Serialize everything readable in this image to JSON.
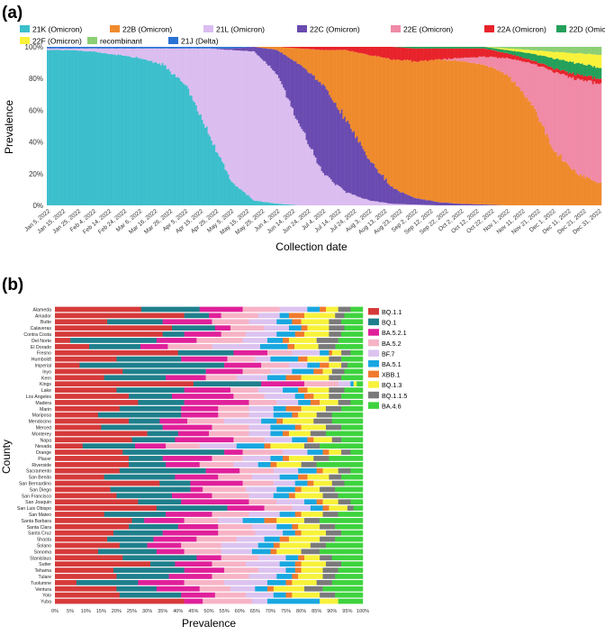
{
  "panels": {
    "a": {
      "label": "(a)"
    },
    "b": {
      "label": "(b)"
    }
  },
  "chart_data": [
    {
      "type": "bar",
      "stacked": true,
      "panel": "(a)",
      "title": "",
      "xlabel": "Collection date",
      "ylabel": "Prevalence",
      "ylim": [
        0,
        100
      ],
      "y_ticks": [
        "0%",
        "20%",
        "40%",
        "60%",
        "80%",
        "100%"
      ],
      "x_tick_labels": [
        "Jan 5, 2022",
        "Jan 15, 2022",
        "Jan 25, 2022",
        "Feb 4, 2022",
        "Feb 14, 2022",
        "Feb 24, 2022",
        "Mar 6, 2022",
        "Mar 16, 2022",
        "Mar 26, 2022",
        "Apr 5, 2022",
        "Apr 15, 2022",
        "Apr 25, 2022",
        "May 5, 2022",
        "May 15, 2022",
        "May 25, 2022",
        "Jun 4, 2022",
        "Jun 14, 2022",
        "Jun 24, 2022",
        "Jul 4, 2022",
        "Jul 14, 2022",
        "Jul 24, 2022",
        "Aug 3, 2022",
        "Aug 13, 2022",
        "Aug 23, 2022",
        "Sep 2, 2022",
        "Sep 12, 2022",
        "Sep 22, 2022",
        "Oct 2, 2022",
        "Oct 12, 2022",
        "Oct 22, 2022",
        "Nov 1, 2022",
        "Nov 11, 2022",
        "Nov 21, 2022",
        "Dec 1, 2022",
        "Dec 11, 2022",
        "Dec 21, 2022",
        "Dec 31, 2022"
      ],
      "legend": [
        {
          "name": "21K (Omicron)",
          "color": "#3cbfcc"
        },
        {
          "name": "22B (Omicron)",
          "color": "#ef8a2c"
        },
        {
          "name": "21L (Omicron)",
          "color": "#dbbdf0"
        },
        {
          "name": "22C (Omicron)",
          "color": "#6a4bb0"
        },
        {
          "name": "22E (Omicron)",
          "color": "#f08aa6"
        },
        {
          "name": "22A (Omicron)",
          "color": "#e8222b"
        },
        {
          "name": "22D (Omicron)",
          "color": "#23a05a"
        },
        {
          "name": "22F (Omicron)",
          "color": "#f8f23a"
        },
        {
          "name": "recombinant",
          "color": "#8ccf74"
        },
        {
          "name": "21J (Delta)",
          "color": "#2a72d4"
        }
      ],
      "series_days": [
        0,
        15,
        30,
        45,
        60,
        75,
        90,
        105,
        120,
        135,
        150,
        165,
        180,
        195,
        210,
        225,
        240,
        255,
        270,
        285,
        300,
        315,
        330,
        345,
        361
      ],
      "series": [
        {
          "name": "21K (Omicron)",
          "values": [
            98,
            98,
            97,
            95,
            92,
            88,
            75,
            45,
            15,
            3,
            1,
            0,
            0,
            0,
            0,
            0,
            0,
            0,
            0,
            0,
            0,
            0,
            0,
            0,
            0
          ]
        },
        {
          "name": "21L (Omicron)",
          "values": [
            1,
            1,
            2,
            4,
            6,
            10,
            23,
            53,
            83,
            94,
            80,
            48,
            20,
            8,
            3,
            1,
            0.5,
            0,
            0,
            0,
            0,
            0,
            0,
            0,
            0
          ]
        },
        {
          "name": "22C (Omicron)",
          "values": [
            0,
            0,
            0,
            0,
            0,
            0,
            0,
            0,
            1,
            3,
            15,
            38,
            55,
            45,
            25,
            10,
            4,
            2,
            1,
            0.5,
            0,
            0,
            0,
            0,
            0
          ]
        },
        {
          "name": "22B (Omicron)",
          "values": [
            0,
            0,
            0,
            0,
            0,
            0,
            0,
            0,
            0,
            0,
            2,
            10,
            22,
            44,
            65,
            80,
            86,
            89,
            89,
            87,
            82,
            65,
            35,
            20,
            14
          ]
        },
        {
          "name": "22E (Omicron)",
          "values": [
            0,
            0,
            0,
            0,
            0,
            0,
            0,
            0,
            0,
            0,
            0,
            0,
            0,
            0,
            0,
            0,
            0,
            0,
            2,
            5,
            10,
            24,
            48,
            58,
            62
          ]
        },
        {
          "name": "22A (Omicron)",
          "values": [
            0,
            0,
            0,
            0,
            0,
            0,
            0,
            0,
            0,
            0,
            0,
            1,
            2,
            2,
            5,
            8,
            8,
            7,
            6,
            5,
            3,
            2,
            2,
            3,
            3
          ]
        },
        {
          "name": "22D (Omicron)",
          "values": [
            0,
            0,
            0,
            0,
            0,
            0,
            0,
            0,
            0,
            0,
            0,
            0,
            0,
            0,
            0,
            0,
            1,
            1,
            1,
            1,
            2,
            4,
            6,
            7,
            7
          ]
        },
        {
          "name": "22F (Omicron)",
          "values": [
            0,
            0,
            0,
            0,
            0,
            0,
            0,
            0,
            0,
            0,
            0,
            0,
            0,
            0,
            0,
            0,
            0,
            0,
            0,
            0,
            1,
            2,
            4,
            6,
            8
          ]
        },
        {
          "name": "recombinant",
          "values": [
            0,
            0,
            0,
            0,
            0,
            0,
            0,
            0,
            0,
            0,
            0,
            0,
            0,
            0,
            0,
            0,
            0,
            0,
            0,
            0,
            1,
            2,
            3,
            4,
            5
          ]
        },
        {
          "name": "21J (Delta)",
          "values": [
            1,
            1,
            1,
            1,
            1,
            1,
            1,
            1,
            1,
            0,
            0,
            0,
            0,
            0,
            0,
            0,
            0,
            0,
            0,
            0,
            0,
            0,
            0,
            0,
            0
          ]
        }
      ]
    },
    {
      "type": "bar",
      "orientation": "horizontal",
      "stacked": true,
      "panel": "(b)",
      "title": "",
      "xlabel": "Prevalence",
      "ylabel": "County",
      "xlim": [
        0,
        100
      ],
      "x_ticks": [
        "0%",
        "5%",
        "10%",
        "15%",
        "20%",
        "25%",
        "30%",
        "35%",
        "40%",
        "45%",
        "50%",
        "55%",
        "60%",
        "65%",
        "70%",
        "75%",
        "80%",
        "85%",
        "90%",
        "95%",
        "100%"
      ],
      "legend": [
        {
          "name": "BQ.1.1",
          "color": "#d63a3a"
        },
        {
          "name": "BQ.1",
          "color": "#1f7f8c"
        },
        {
          "name": "BA.5.2.1",
          "color": "#e0209a"
        },
        {
          "name": "BA.5.2",
          "color": "#f7b3c6"
        },
        {
          "name": "BF.7",
          "color": "#dcc3f0"
        },
        {
          "name": "BA.5.1",
          "color": "#18a7e0"
        },
        {
          "name": "XBB.1",
          "color": "#f07a2e"
        },
        {
          "name": "BQ.1.3",
          "color": "#f7f23a"
        },
        {
          "name": "BQ.1.1.5",
          "color": "#7a7a7a"
        },
        {
          "name": "BA.4.6",
          "color": "#3ed33e"
        }
      ],
      "categories": [
        "Alameda",
        "Amador",
        "Butte",
        "Calaveras",
        "Contra Costa",
        "Del Norte",
        "El Dorado",
        "Fresno",
        "Humboldt",
        "Imperial",
        "Inyo",
        "Kern",
        "Kings",
        "Lake",
        "Los Angeles",
        "Madera",
        "Marin",
        "Mariposa",
        "Mendocino",
        "Merced",
        "Monterey",
        "Napa",
        "Nevada",
        "Orange",
        "Placer",
        "Riverside",
        "Sacramento",
        "San Benito",
        "San Bernardino",
        "San Diego",
        "San Francisco",
        "San Joaquin",
        "San Luis Obispo",
        "San Mateo",
        "Santa Barbara",
        "Santa Clara",
        "Santa Cruz",
        "Shasta",
        "Solano",
        "Sonoma",
        "Stanislaus",
        "Sutter",
        "Tehama",
        "Tulare",
        "Tuolumne",
        "Ventura",
        "Yolo",
        "Yuba"
      ],
      "series": [
        {
          "name": "BQ.1.1",
          "values": [
            28,
            42,
            17,
            38,
            35,
            5,
            10,
            40,
            20,
            8,
            22,
            16,
            45,
            20,
            24,
            27,
            21,
            14,
            24,
            15,
            30,
            25,
            9,
            22,
            24,
            24,
            21,
            16,
            34,
            18,
            20,
            27,
            33,
            16,
            25,
            24,
            19,
            17,
            21,
            14,
            22,
            31,
            19,
            20,
            7,
            20,
            21,
            42
          ]
        },
        {
          "name": "BQ.1",
          "values": [
            19,
            8,
            18,
            14,
            7,
            28,
            15,
            18,
            21,
            47,
            27,
            20,
            22,
            22,
            14,
            15,
            20,
            27,
            10,
            20,
            10,
            14,
            17,
            33,
            11,
            12,
            28,
            23,
            10,
            26,
            18,
            14,
            23,
            20,
            4,
            16,
            16,
            15,
            9,
            19,
            24,
            8,
            23,
            17,
            20,
            13,
            20,
            0
          ]
        },
        {
          "name": "BA.5.2.1",
          "values": [
            14,
            4,
            16,
            5,
            12,
            13,
            8,
            11,
            15,
            12,
            12,
            13,
            14,
            15,
            20,
            21,
            12,
            12,
            9,
            16,
            10,
            19,
            10,
            6,
            16,
            11,
            11,
            14,
            17,
            4,
            13,
            22,
            12,
            15,
            13,
            13,
            18,
            14,
            11,
            9,
            8,
            12,
            13,
            14,
            15,
            14,
            11,
            6
          ]
        },
        {
          "name": "BA.5.2",
          "values": [
            12,
            12,
            12,
            11,
            8,
            15,
            13,
            8,
            9,
            9,
            9,
            10,
            11,
            9,
            10,
            9,
            10,
            10,
            12,
            12,
            13,
            10,
            11,
            13,
            10,
            11,
            11,
            11,
            10,
            14,
            12,
            9,
            9,
            12,
            11,
            11,
            12,
            13,
            13,
            12,
            12,
            11,
            11,
            12,
            13,
            10,
            10,
            16
          ]
        },
        {
          "name": "BF.7",
          "values": [
            9,
            7,
            9,
            8,
            10,
            8,
            14,
            9,
            5,
            6,
            7,
            10,
            4,
            8,
            10,
            7,
            8,
            8,
            12,
            7,
            7,
            9,
            12,
            8,
            9,
            8,
            8,
            9,
            7,
            10,
            8,
            9,
            6,
            10,
            8,
            8,
            9,
            9,
            12,
            10,
            9,
            11,
            9,
            9,
            14,
            8,
            9,
            5
          ]
        },
        {
          "name": "BA.5.1",
          "values": [
            4,
            3,
            5,
            4,
            6,
            5,
            8,
            3,
            9,
            4,
            7,
            6,
            1,
            5,
            3,
            4,
            4,
            6,
            5,
            8,
            4,
            5,
            9,
            5,
            4,
            4,
            6,
            6,
            4,
            6,
            5,
            4,
            4,
            5,
            7,
            5,
            4,
            5,
            5,
            6,
            4,
            5,
            3,
            5,
            6,
            4,
            4,
            17
          ]
        },
        {
          "name": "XBB.1",
          "values": [
            2,
            5,
            3,
            2,
            3,
            2,
            2,
            1,
            3,
            3,
            3,
            5,
            0,
            3,
            3,
            3,
            5,
            2,
            2,
            2,
            2,
            2,
            2,
            2,
            2,
            2,
            2,
            3,
            2,
            2,
            2,
            2,
            2,
            2,
            4,
            2,
            2,
            3,
            2,
            2,
            2,
            2,
            2,
            2,
            2,
            2,
            2,
            0
          ]
        },
        {
          "name": "BQ.1.3",
          "values": [
            4,
            10,
            9,
            7,
            8,
            9,
            7,
            3,
            7,
            4,
            3,
            9,
            1,
            7,
            5,
            6,
            8,
            6,
            10,
            8,
            7,
            6,
            11,
            4,
            8,
            8,
            5,
            7,
            6,
            6,
            9,
            5,
            6,
            7,
            9,
            7,
            8,
            10,
            10,
            8,
            5,
            8,
            7,
            8,
            8,
            10,
            9,
            6
          ]
        },
        {
          "name": "BQ.1.1.5",
          "values": [
            4,
            3,
            4,
            5,
            4,
            7,
            5,
            3,
            4,
            2,
            4,
            4,
            0,
            5,
            4,
            4,
            5,
            5,
            6,
            5,
            5,
            3,
            5,
            3,
            5,
            5,
            4,
            4,
            4,
            5,
            5,
            4,
            2,
            5,
            5,
            5,
            5,
            5,
            5,
            6,
            4,
            5,
            5,
            4,
            5,
            6,
            5,
            0
          ]
        },
        {
          "name": "BA.4.6",
          "values": [
            4,
            6,
            7,
            6,
            7,
            8,
            8,
            4,
            7,
            5,
            6,
            7,
            2,
            6,
            7,
            4,
            7,
            10,
            10,
            7,
            12,
            7,
            14,
            4,
            11,
            15,
            4,
            7,
            6,
            9,
            8,
            4,
            3,
            8,
            14,
            9,
            7,
            9,
            12,
            14,
            10,
            7,
            8,
            9,
            10,
            13,
            9,
            8
          ]
        }
      ]
    }
  ]
}
